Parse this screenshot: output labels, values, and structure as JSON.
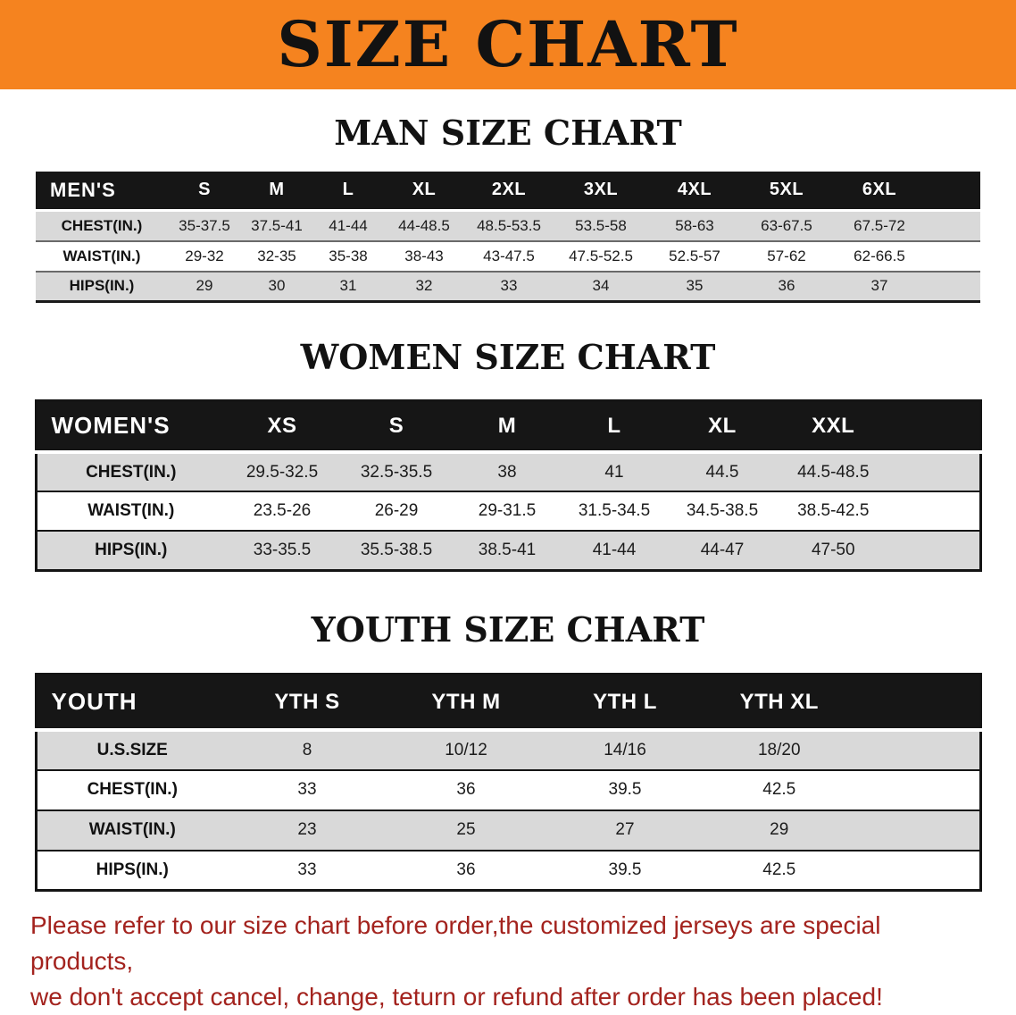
{
  "banner": {
    "title": "SIZE CHART"
  },
  "colors": {
    "banner_bg": "#F5831F",
    "table_header_bg": "#161616",
    "stripe_gray": "#D9D9D9",
    "disclaimer_red": "#A3231E"
  },
  "sections": [
    {
      "heading": "MAN SIZE CHART",
      "table": {
        "header": [
          "MEN'S",
          "S",
          "M",
          "L",
          "XL",
          "2XL",
          "3XL",
          "4XL",
          "5XL",
          "6XL"
        ],
        "rows": [
          [
            "CHEST(IN.)",
            "35-37.5",
            "37.5-41",
            "41-44",
            "44-48.5",
            "48.5-53.5",
            "53.5-58",
            "58-63",
            "63-67.5",
            "67.5-72"
          ],
          [
            "WAIST(IN.)",
            "29-32",
            "32-35",
            "35-38",
            "38-43",
            "43-47.5",
            "47.5-52.5",
            "52.5-57",
            "57-62",
            "62-66.5"
          ],
          [
            "HIPS(IN.)",
            "29",
            "30",
            "31",
            "32",
            "33",
            "34",
            "35",
            "36",
            "37"
          ]
        ]
      }
    },
    {
      "heading": "WOMEN SIZE CHART",
      "table": {
        "header": [
          "WOMEN'S",
          "XS",
          "S",
          "M",
          "L",
          "XL",
          "XXL"
        ],
        "rows": [
          [
            "CHEST(IN.)",
            "29.5-32.5",
            "32.5-35.5",
            "38",
            "41",
            "44.5",
            "44.5-48.5"
          ],
          [
            "WAIST(IN.)",
            "23.5-26",
            "26-29",
            "29-31.5",
            "31.5-34.5",
            "34.5-38.5",
            "38.5-42.5"
          ],
          [
            "HIPS(IN.)",
            "33-35.5",
            "35.5-38.5",
            "38.5-41",
            "41-44",
            "44-47",
            "47-50"
          ]
        ]
      }
    },
    {
      "heading": "YOUTH SIZE CHART",
      "table": {
        "header": [
          "YOUTH",
          "YTH S",
          "YTH M",
          "YTH L",
          "YTH XL"
        ],
        "rows": [
          [
            "U.S.SIZE",
            "8",
            "10/12",
            "14/16",
            "18/20"
          ],
          [
            "CHEST(IN.)",
            "33",
            "36",
            "39.5",
            "42.5"
          ],
          [
            "WAIST(IN.)",
            "23",
            "25",
            "27",
            "29"
          ],
          [
            "HIPS(IN.)",
            "33",
            "36",
            "39.5",
            "42.5"
          ]
        ]
      }
    }
  ],
  "footer": {
    "line1": "Please refer to our size chart before order,the customized jerseys are special products,",
    "line2": "we don't accept cancel, change, teturn or refund after order has been placed!"
  }
}
